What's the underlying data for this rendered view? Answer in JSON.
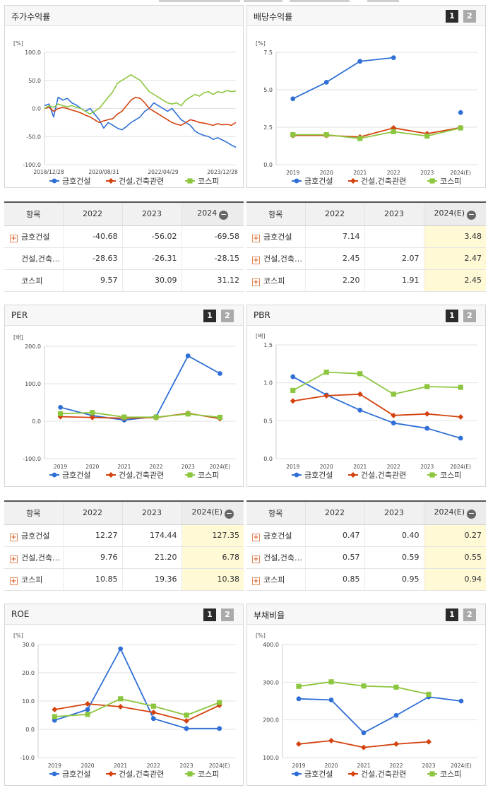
{
  "colors": {
    "s1": "#2f6fd6",
    "s2": "#d4420f",
    "s3": "#8cc63f"
  },
  "pager": {
    "p1": "1",
    "p2": "2"
  },
  "panels": {
    "price": {
      "title": "주가수익률",
      "chart_data": {
        "type": "line",
        "unit": "[%]",
        "y_ticks": [
          "100.0",
          "50.0",
          "0.0",
          "-50.0",
          "-100.0"
        ],
        "ylim": [
          -100,
          100
        ],
        "x_labels": [
          "2018/12/28",
          "2020/08/31",
          "2022/04/29",
          "2023/12/28"
        ],
        "series": [
          {
            "name": "금호건설",
            "values": [
              5,
              8,
              -15,
              20,
              15,
              18,
              10,
              6,
              0,
              -5,
              0,
              -10,
              -20,
              -35,
              -25,
              -30,
              -35,
              -38,
              -32,
              -25,
              -20,
              -15,
              -5,
              0,
              10,
              5,
              0,
              -5,
              0,
              -10,
              -20,
              -25,
              -30,
              -40,
              -45,
              -48,
              -50,
              -55,
              -52,
              -56,
              -60,
              -65,
              -69
            ]
          },
          {
            "name": "건설,건축관련",
            "values": [
              0,
              2,
              -5,
              0,
              2,
              0,
              -3,
              -5,
              -8,
              -12,
              -15,
              -20,
              -25,
              -22,
              -20,
              -18,
              -10,
              -5,
              5,
              15,
              20,
              18,
              10,
              0,
              -5,
              -10,
              -15,
              -20,
              -25,
              -28,
              -30,
              -25,
              -20,
              -22,
              -25,
              -26,
              -28,
              -30,
              -27,
              -29,
              -28,
              -30,
              -25
            ]
          },
          {
            "name": "코스피",
            "values": [
              0,
              5,
              2,
              8,
              5,
              3,
              5,
              2,
              0,
              -5,
              -10,
              -5,
              0,
              10,
              20,
              30,
              45,
              50,
              55,
              60,
              55,
              50,
              40,
              30,
              25,
              20,
              15,
              10,
              8,
              10,
              5,
              15,
              20,
              25,
              22,
              28,
              30,
              25,
              30,
              28,
              32,
              30,
              31
            ]
          }
        ]
      }
    },
    "dividend": {
      "title": "배당수익률",
      "chart_data": {
        "type": "line",
        "unit": "[%]",
        "y_ticks": [
          "7.5",
          "5.0",
          "2.5",
          "0.0"
        ],
        "ylim": [
          0,
          7.5
        ],
        "categories": [
          "2019",
          "2020",
          "2021",
          "2022",
          "2023",
          "2024(E)"
        ],
        "series": [
          {
            "name": "금호건설",
            "values": [
              4.4,
              5.5,
              6.9,
              7.14,
              null,
              3.48
            ]
          },
          {
            "name": "건설,건축관련",
            "values": [
              1.95,
              1.95,
              1.85,
              2.45,
              2.07,
              2.47
            ]
          },
          {
            "name": "코스피",
            "values": [
              2.0,
              2.0,
              1.75,
              2.2,
              1.91,
              2.45
            ]
          }
        ]
      }
    },
    "per": {
      "title": "PER",
      "chart_data": {
        "type": "line",
        "unit": "[배]",
        "y_ticks": [
          "200.0",
          "100.0",
          "0.0",
          "-100.0"
        ],
        "ylim": [
          -100,
          200
        ],
        "categories": [
          "2019",
          "2020",
          "2021",
          "2022",
          "2023",
          "2024(E)"
        ],
        "series": [
          {
            "name": "금호건설",
            "values": [
              37,
              15,
              3,
              12.27,
              174.44,
              127.35
            ]
          },
          {
            "name": "건설,건축관련",
            "values": [
              12,
              10,
              8,
              9.76,
              21.2,
              6.78
            ]
          },
          {
            "name": "코스피",
            "values": [
              20,
              23,
              11,
              10.85,
              19.36,
              10.38
            ]
          }
        ]
      }
    },
    "pbr": {
      "title": "PBR",
      "chart_data": {
        "type": "line",
        "unit": "[배]",
        "y_ticks": [
          "1.5",
          "1.0",
          "0.5",
          "0.0"
        ],
        "ylim": [
          0,
          1.5
        ],
        "categories": [
          "2019",
          "2020",
          "2021",
          "2022",
          "2023",
          "2024(E)"
        ],
        "series": [
          {
            "name": "금호건설",
            "values": [
              1.08,
              0.84,
              0.64,
              0.47,
              0.4,
              0.27
            ]
          },
          {
            "name": "건설,건축관련",
            "values": [
              0.76,
              0.83,
              0.85,
              0.57,
              0.59,
              0.55
            ]
          },
          {
            "name": "코스피",
            "values": [
              0.9,
              1.14,
              1.12,
              0.85,
              0.95,
              0.94
            ]
          }
        ]
      }
    },
    "roe": {
      "title": "ROE",
      "chart_data": {
        "type": "line",
        "unit": "[%]",
        "y_ticks": [
          "30.0",
          "20.0",
          "10.0",
          "0.0",
          "-10.0"
        ],
        "ylim": [
          -10,
          30
        ],
        "categories": [
          "2019",
          "2020",
          "2021",
          "2022",
          "2023",
          "2024(E)"
        ],
        "series": [
          {
            "name": "금호건설",
            "values": [
              3.2,
              7.0,
              28.5,
              3.8,
              0.3,
              0.3
            ]
          },
          {
            "name": "건설,건축관련",
            "values": [
              7.0,
              9.0,
              8.0,
              6.0,
              3.0,
              8.5
            ]
          },
          {
            "name": "코스피",
            "values": [
              4.5,
              5.3,
              10.8,
              8.2,
              5.0,
              9.5
            ]
          }
        ]
      }
    },
    "debt": {
      "title": "부채비율",
      "chart_data": {
        "type": "line",
        "unit": "[%]",
        "y_ticks": [
          "400.0",
          "300.0",
          "200.0",
          "100.0"
        ],
        "ylim": [
          100,
          400
        ],
        "categories": [
          "2019",
          "2020",
          "2021",
          "2022",
          "2023",
          "2024(E)"
        ],
        "series": [
          {
            "name": "금호건설",
            "values": [
              256,
              253,
              166,
              212,
              261,
              250
            ]
          },
          {
            "name": "건설,건축관련",
            "values": [
              136,
              145,
              127,
              136,
              142,
              null
            ]
          },
          {
            "name": "코스피",
            "values": [
              289,
              301,
              290,
              287,
              268,
              null
            ]
          }
        ]
      }
    }
  },
  "tables": {
    "price": {
      "headers": [
        "항목",
        "2022",
        "2023",
        "2024"
      ],
      "rows": [
        {
          "name": "금호건설",
          "values": [
            "-40.68",
            "-56.02",
            "-69.58"
          ]
        },
        {
          "name": "건설,건축…",
          "values": [
            "-28.63",
            "-26.31",
            "-28.15"
          ]
        },
        {
          "name": "코스피",
          "values": [
            "9.57",
            "30.09",
            "31.12"
          ]
        }
      ]
    },
    "dividend": {
      "headers": [
        "항목",
        "2022",
        "2023",
        "2024(E)"
      ],
      "rows": [
        {
          "name": "금호건설",
          "values": [
            "7.14",
            "",
            "3.48"
          ]
        },
        {
          "name": "건설,건축…",
          "values": [
            "2.45",
            "2.07",
            "2.47"
          ]
        },
        {
          "name": "코스피",
          "values": [
            "2.20",
            "1.91",
            "2.45"
          ]
        }
      ]
    },
    "per": {
      "headers": [
        "항목",
        "2022",
        "2023",
        "2024(E)"
      ],
      "rows": [
        {
          "name": "금호건설",
          "values": [
            "12.27",
            "174.44",
            "127.35"
          ]
        },
        {
          "name": "건설,건축…",
          "values": [
            "9.76",
            "21.20",
            "6.78"
          ]
        },
        {
          "name": "코스피",
          "values": [
            "10.85",
            "19.36",
            "10.38"
          ]
        }
      ]
    },
    "pbr": {
      "headers": [
        "항목",
        "2022",
        "2023",
        "2024(E)"
      ],
      "rows": [
        {
          "name": "금호건설",
          "values": [
            "0.47",
            "0.40",
            "0.27"
          ]
        },
        {
          "name": "건설,건축…",
          "values": [
            "0.57",
            "0.59",
            "0.55"
          ]
        },
        {
          "name": "코스피",
          "values": [
            "0.85",
            "0.95",
            "0.94"
          ]
        }
      ]
    }
  }
}
